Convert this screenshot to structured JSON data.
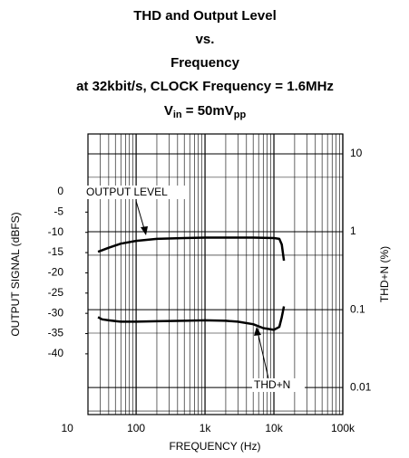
{
  "chart_data": {
    "type": "line",
    "title": [
      "THD and Output Level",
      "vs.",
      "Frequency",
      "at 32kbit/s, CLOCK Frequency = 1.6MHz"
    ],
    "condition": [
      "V",
      "in",
      " = 50mV",
      "pp"
    ],
    "xlabel": "FREQUENCY (Hz)",
    "ylabel": "OUTPUT SIGNAL (dBFS)",
    "y2label": "THD+N (%)",
    "xscale": "log",
    "y2scale": "log",
    "grid": true,
    "xlim": [
      20,
      100000
    ],
    "xticks": [
      10,
      100,
      {
        "value": 1000,
        "label": "1k"
      },
      {
        "value": 10000,
        "label": "10k"
      },
      {
        "value": 100000,
        "label": "100k"
      }
    ],
    "ylim": [
      -55,
      14.3
    ],
    "yticks": [
      0,
      -5,
      -10,
      -15,
      -20,
      -25,
      -30,
      -35,
      -40
    ],
    "y2lim": [
      0.0045,
      18
    ],
    "y2ticks": [
      10,
      1,
      0.1,
      0.01
    ],
    "series": [
      {
        "name": "OUTPUT LEVEL",
        "color": "#000000",
        "x": [
          28,
          40,
          60,
          100,
          200,
          500,
          1000,
          2000,
          5000,
          10000,
          12000,
          13000,
          14000
        ],
        "values": [
          -14.8,
          -13.8,
          -12.8,
          -12.1,
          -11.6,
          -11.4,
          -11.3,
          -11.3,
          -11.3,
          -11.4,
          -11.6,
          -13,
          -17
        ]
      },
      {
        "name": "THD+N",
        "color": "#000000",
        "axis": "y2",
        "x": [
          28,
          32,
          40,
          60,
          100,
          200,
          500,
          1000,
          2000,
          3000,
          5000,
          7000,
          10000,
          12000,
          13000,
          14000
        ],
        "values": [
          0.08,
          0.075,
          0.073,
          0.07,
          0.07,
          0.071,
          0.072,
          0.073,
          0.072,
          0.07,
          0.065,
          0.058,
          0.055,
          0.06,
          0.08,
          0.11
        ]
      }
    ]
  }
}
